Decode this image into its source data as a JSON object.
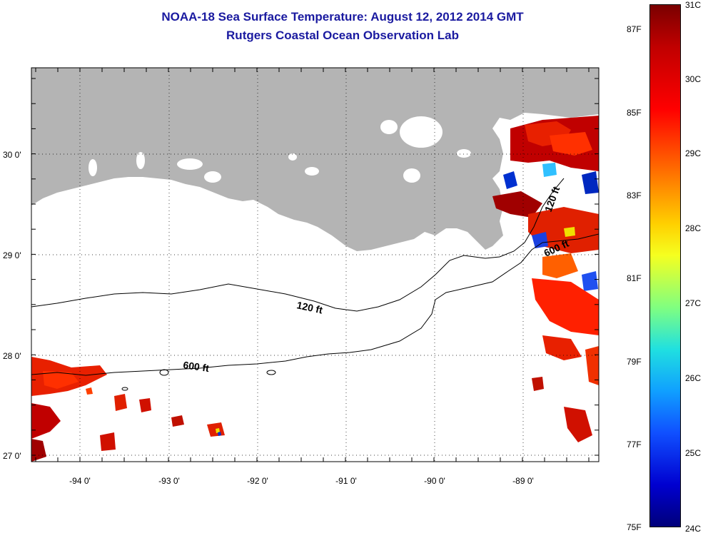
{
  "title": {
    "line1": "NOAA-18 Sea Surface Temperature:  August 12, 2012 2014 GMT",
    "line2": "Rutgers Coastal Ocean Observation Lab"
  },
  "map": {
    "lat_labels": [
      "30 0'",
      "29 0'",
      "28 0'",
      "27 0'"
    ],
    "lon_labels": [
      "-94 0'",
      "-93 0'",
      "-92 0'",
      "-91 0'",
      "-90 0'",
      "-89 0'"
    ],
    "lat_range": [
      26.95,
      30.85
    ],
    "lon_range": [
      -94.5,
      -88.0
    ],
    "contours": [
      {
        "label": "120 ft"
      },
      {
        "label": "600 ft"
      },
      {
        "label": "120 ft"
      },
      {
        "label": "600 ft"
      }
    ],
    "colors": {
      "land": "#b4b4b4",
      "ocean": "#ffffff"
    }
  },
  "colorbar": {
    "celsius_labels": [
      "31C",
      "30C",
      "29C",
      "28C",
      "27C",
      "26C",
      "25C",
      "24C"
    ],
    "fahrenheit_labels": [
      "87F",
      "85F",
      "83F",
      "81F",
      "79F",
      "77F",
      "75F"
    ],
    "range_c": [
      24,
      31
    ]
  }
}
